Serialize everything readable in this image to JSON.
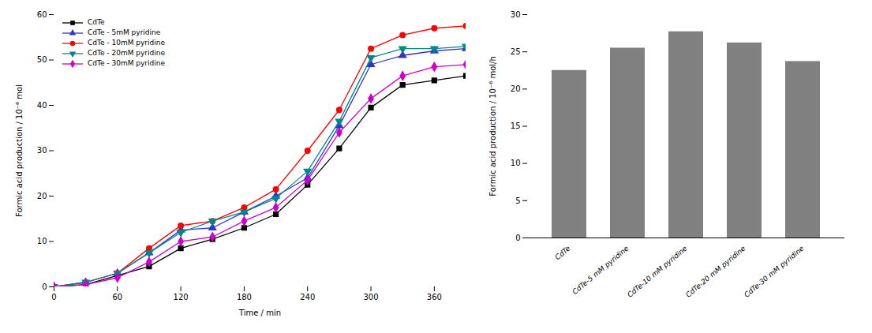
{
  "chart_data": [
    {
      "type": "line",
      "x": [
        0,
        30,
        60,
        90,
        120,
        150,
        180,
        210,
        240,
        270,
        300,
        330,
        360,
        390
      ],
      "series": [
        {
          "name": "CdTe",
          "color": "#000000",
          "marker": "square",
          "values": [
            0,
            0.5,
            2.5,
            4.5,
            8.5,
            10.5,
            13.0,
            16.0,
            22.5,
            30.5,
            39.5,
            44.5,
            45.5,
            46.5
          ]
        },
        {
          "name": "CdTe - 5mM pyridine",
          "color": "#3333cc",
          "marker": "triangle-up",
          "values": [
            0,
            1.0,
            3.0,
            7.5,
            12.5,
            13.0,
            16.5,
            20.0,
            24.0,
            35.5,
            49.0,
            51.0,
            52.0,
            52.5
          ]
        },
        {
          "name": "CdTe - 10mM pyridine",
          "color": "#ff0000",
          "marker": "circle",
          "values": [
            0,
            1.0,
            3.0,
            8.5,
            13.5,
            14.5,
            17.5,
            21.5,
            30.0,
            39.0,
            52.5,
            55.5,
            57.0,
            57.5
          ]
        },
        {
          "name": "CdTe - 20mM pyridine",
          "color": "#008888",
          "marker": "triangle-down",
          "values": [
            0,
            1.0,
            3.0,
            7.5,
            12.0,
            14.5,
            16.5,
            19.5,
            25.5,
            36.5,
            50.5,
            52.5,
            52.5,
            53.0
          ]
        },
        {
          "name": "CdTe - 30mM pyridine",
          "color": "#cc00cc",
          "marker": "diamond",
          "values": [
            0,
            0.5,
            2.0,
            5.5,
            10.0,
            11.0,
            14.5,
            17.5,
            23.5,
            34.0,
            41.5,
            46.5,
            48.5,
            49.0
          ]
        }
      ],
      "xlabel": "Time / min",
      "ylabel": "Formic acid production / 10⁻⁶ mol",
      "xlim": [
        0,
        390
      ],
      "ylim": [
        0,
        60
      ],
      "xticks": [
        0,
        60,
        120,
        180,
        240,
        300,
        360
      ],
      "yticks": [
        0,
        10,
        20,
        30,
        40,
        50,
        60
      ],
      "legend": "upper left"
    },
    {
      "type": "bar",
      "categories": [
        "CdTe",
        "CdTe-5 mM pyridine",
        "CdTe-10 mM pyridine",
        "CdTe-20 mM pyridine",
        "CdTe-30 mM pyridine"
      ],
      "values": [
        22.5,
        25.5,
        27.7,
        26.2,
        23.7
      ],
      "color": "#808080",
      "ylabel": "Formic acid production / 10⁻⁶ mol/h",
      "ylim": [
        0,
        30
      ],
      "yticks": [
        0,
        5,
        10,
        15,
        20,
        25,
        30
      ]
    }
  ]
}
